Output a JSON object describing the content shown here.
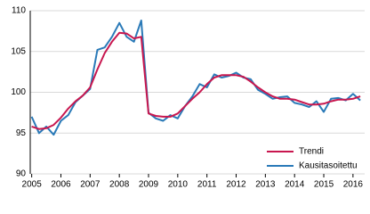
{
  "chart_data": {
    "type": "line",
    "x": [
      2005,
      2005.25,
      2005.5,
      2005.75,
      2006,
      2006.25,
      2006.5,
      2006.75,
      2007,
      2007.25,
      2007.5,
      2007.75,
      2008,
      2008.25,
      2008.5,
      2008.75,
      2009,
      2009.25,
      2009.5,
      2009.75,
      2010,
      2010.25,
      2010.5,
      2010.75,
      2011,
      2011.25,
      2011.5,
      2011.75,
      2012,
      2012.25,
      2012.5,
      2012.75,
      2013,
      2013.25,
      2013.5,
      2013.75,
      2014,
      2014.25,
      2014.5,
      2014.75,
      2015,
      2015.25,
      2015.5,
      2015.75,
      2016,
      2016.25
    ],
    "series": [
      {
        "name": "Trendi",
        "color": "#c8174f",
        "values": [
          95.8,
          95.5,
          95.6,
          96.0,
          96.9,
          98.0,
          98.9,
          99.6,
          100.6,
          102.8,
          104.8,
          106.2,
          107.3,
          107.2,
          106.6,
          106.8,
          97.4,
          97.1,
          97.0,
          97.0,
          97.4,
          98.3,
          99.2,
          100.0,
          101.0,
          101.8,
          102.1,
          102.1,
          102.1,
          101.9,
          101.3,
          100.6,
          100.0,
          99.5,
          99.2,
          99.2,
          99.1,
          98.8,
          98.5,
          98.5,
          98.6,
          98.9,
          99.1,
          99.1,
          99.2,
          99.5
        ]
      },
      {
        "name": "Kausitasoitettu",
        "color": "#2a7ab8",
        "values": [
          97.0,
          95.0,
          95.8,
          94.8,
          96.5,
          97.2,
          98.8,
          99.6,
          100.4,
          105.2,
          105.5,
          106.8,
          108.5,
          106.8,
          106.2,
          108.8,
          97.5,
          96.8,
          96.5,
          97.2,
          96.8,
          98.3,
          99.5,
          101.0,
          100.6,
          102.2,
          101.8,
          102.0,
          102.4,
          101.8,
          101.6,
          100.3,
          99.8,
          99.2,
          99.4,
          99.5,
          98.7,
          98.5,
          98.2,
          98.9,
          97.6,
          99.2,
          99.3,
          99.0,
          99.8,
          99.0
        ]
      }
    ],
    "xlim": [
      2004.95,
      2016.4
    ],
    "xticks": [
      2005,
      2006,
      2007,
      2008,
      2009,
      2010,
      2011,
      2012,
      2013,
      2014,
      2015,
      2016
    ],
    "ylim": [
      90,
      110
    ],
    "yticks": [
      90,
      95,
      100,
      105,
      110
    ],
    "grid": true,
    "legend": "bottom-right"
  }
}
